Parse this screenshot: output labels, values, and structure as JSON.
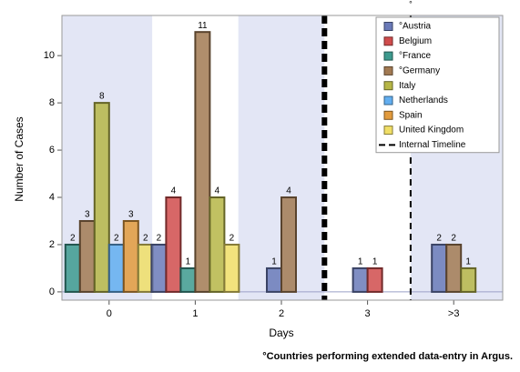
{
  "chart_data": {
    "type": "bar",
    "y_label": "Number of Cases",
    "x_label": "Days",
    "footnote": "°Countries performing extended data-entry in Argus.",
    "categories": [
      "0",
      "1",
      "2",
      "3",
      ">3"
    ],
    "series": [
      {
        "name": "°Austria",
        "color": "#6a7ab8",
        "values": [
          null,
          2,
          1,
          1,
          2
        ]
      },
      {
        "name": "Belgium",
        "color": "#d04c4c",
        "values": [
          null,
          4,
          null,
          1,
          null
        ]
      },
      {
        "name": "°France",
        "color": "#3d9a8e",
        "values": [
          2,
          1,
          null,
          null,
          null
        ]
      },
      {
        "name": "°Germany",
        "color": "#a27a52",
        "values": [
          3,
          11,
          4,
          null,
          2
        ]
      },
      {
        "name": "Italy",
        "color": "#b6b646",
        "values": [
          8,
          4,
          null,
          null,
          1
        ]
      },
      {
        "name": "Netherlands",
        "color": "#62aef0",
        "values": [
          2,
          null,
          null,
          null,
          null
        ]
      },
      {
        "name": "Spain",
        "color": "#e29a3c",
        "values": [
          3,
          null,
          null,
          null,
          null
        ]
      },
      {
        "name": "United Kingdom",
        "color": "#f0de66",
        "values": [
          2,
          2,
          null,
          null,
          null
        ]
      }
    ],
    "reference_lines": [
      {
        "after_category": "2",
        "style": "thick"
      },
      {
        "after_category": "3",
        "style": "thin",
        "name": "Internal Timeline",
        "label": "°"
      }
    ],
    "ylim": [
      -0.35,
      11.7
    ],
    "yticks": [
      0,
      2,
      4,
      6,
      8,
      10
    ]
  }
}
